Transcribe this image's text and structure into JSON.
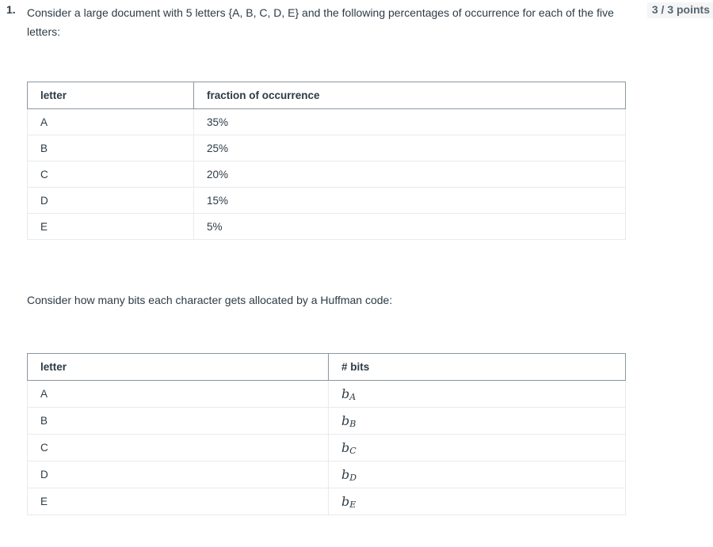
{
  "question": {
    "number": "1.",
    "text": "Consider a large document with 5 letters {A, B, C, D, E} and the following percentages of occurrence for each of the five letters:",
    "points": "3 / 3 points"
  },
  "table1": {
    "headers": [
      "letter",
      "fraction of occurrence"
    ],
    "rows": [
      {
        "letter": "A",
        "value": "35%"
      },
      {
        "letter": "B",
        "value": "25%"
      },
      {
        "letter": "C",
        "value": "20%"
      },
      {
        "letter": "D",
        "value": "15%"
      },
      {
        "letter": "E",
        "value": "5%"
      }
    ]
  },
  "middle_text": "Consider how many bits each character gets allocated by a Huffman code:",
  "table2": {
    "headers": [
      "letter",
      "# bits"
    ],
    "rows": [
      {
        "letter": "A",
        "bits_base": "b",
        "bits_sub": "A"
      },
      {
        "letter": "B",
        "bits_base": "b",
        "bits_sub": "B"
      },
      {
        "letter": "C",
        "bits_base": "b",
        "bits_sub": "C"
      },
      {
        "letter": "D",
        "bits_base": "b",
        "bits_sub": "D"
      },
      {
        "letter": "E",
        "bits_base": "b",
        "bits_sub": "E"
      }
    ]
  }
}
